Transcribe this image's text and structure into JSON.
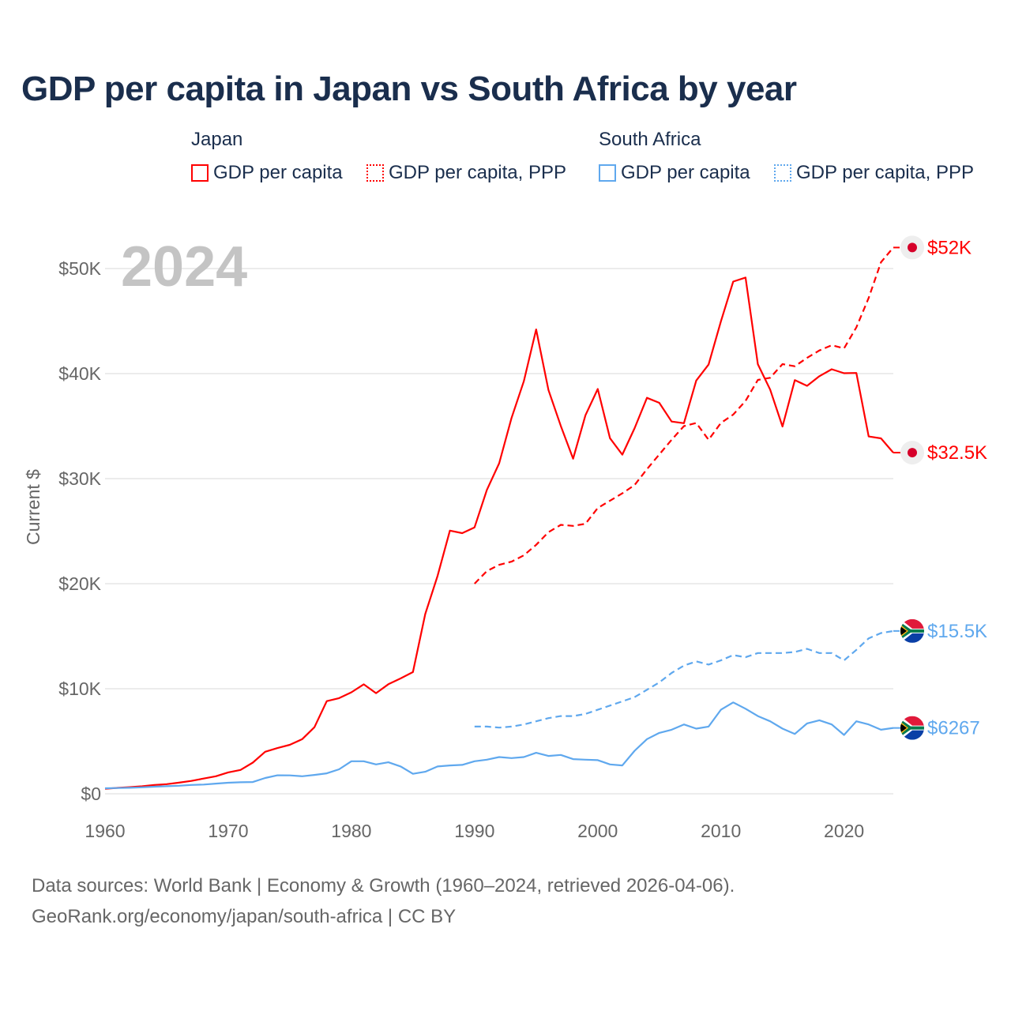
{
  "title": "GDP per capita in Japan vs South Africa by year",
  "legend": {
    "groups": [
      {
        "name": "Japan",
        "items": [
          "GDP per capita",
          "GDP per capita, PPP"
        ]
      },
      {
        "name": "South Africa",
        "items": [
          "GDP per capita",
          "GDP per capita, PPP"
        ]
      }
    ]
  },
  "year_label": "2024",
  "source_line1": "Data sources: World Bank | Economy & Growth (1960–2024, retrieved 2026-04-06).",
  "source_line2": "GeoRank.org/economy/japan/south-africa | CC BY",
  "colors": {
    "japan": "#ff0000",
    "south_africa": "#5fa8ee",
    "grid": "#e6e6e6"
  },
  "chart_data": {
    "type": "line",
    "title": "GDP per capita in Japan vs South Africa by year",
    "xlabel": "",
    "ylabel": "Current $",
    "xlim": [
      1960,
      2024
    ],
    "ylim": [
      0,
      50000
    ],
    "x_ticks": [
      1960,
      1970,
      1980,
      1990,
      2000,
      2010,
      2020
    ],
    "x_tick_labels": [
      "1960",
      "1970",
      "1980",
      "1990",
      "2000",
      "2010",
      "2020"
    ],
    "y_ticks": [
      0,
      10000,
      20000,
      30000,
      40000,
      50000
    ],
    "y_tick_labels": [
      "$0",
      "$10K",
      "$20K",
      "$30K",
      "$40K",
      "$50K"
    ],
    "grid": true,
    "legend_position": "top",
    "series": [
      {
        "name": "Japan GDP per capita",
        "country": "japan",
        "style": "solid",
        "start": 1960,
        "end_label": "$32.5K",
        "values": [
          476,
          564,
          634,
          718,
          835,
          919,
          1059,
          1229,
          1451,
          1669,
          2038,
          2272,
          2967,
          3997,
          4354,
          4659,
          5198,
          6335,
          8821,
          9105,
          9659,
          10421,
          9578,
          10425,
          10984,
          11585,
          17112,
          20746,
          25052,
          24813,
          25359,
          28925,
          31465,
          35766,
          39269,
          44200,
          38437,
          35022,
          31903,
          36027,
          38532,
          33846,
          32289,
          34809,
          37689,
          37218,
          35434,
          35275,
          39339,
          40855,
          44968,
          48760,
          49145,
          40898,
          38475,
          34961,
          39375,
          38834,
          39751,
          40416,
          40040,
          40059,
          34017,
          33834,
          32476
        ]
      },
      {
        "name": "Japan GDP per capita, PPP",
        "country": "japan",
        "style": "dashed",
        "start": 1990,
        "end_label": "$52K",
        "values": [
          20000,
          21200,
          21800,
          22100,
          22700,
          23700,
          24900,
          25600,
          25500,
          25700,
          27200,
          27900,
          28600,
          29400,
          30900,
          32300,
          33700,
          35000,
          35300,
          33700,
          35300,
          36100,
          37400,
          39400,
          39600,
          40900,
          40700,
          41500,
          42200,
          42700,
          42400,
          44400,
          47200,
          50600,
          52000
        ]
      },
      {
        "name": "South Africa GDP per capita",
        "country": "south_africa",
        "style": "solid",
        "start": 1960,
        "end_label": "$6267",
        "values": [
          530,
          550,
          570,
          620,
          680,
          720,
          770,
          840,
          880,
          970,
          1050,
          1100,
          1120,
          1500,
          1760,
          1750,
          1670,
          1800,
          1950,
          2330,
          3100,
          3100,
          2800,
          3000,
          2600,
          1900,
          2100,
          2600,
          2700,
          2750,
          3100,
          3250,
          3500,
          3400,
          3500,
          3900,
          3600,
          3700,
          3300,
          3250,
          3200,
          2800,
          2700,
          4100,
          5200,
          5800,
          6100,
          6600,
          6200,
          6400,
          8000,
          8700,
          8100,
          7400,
          6900,
          6200,
          5700,
          6700,
          7000,
          6600,
          5600,
          6900,
          6600,
          6100,
          6267
        ]
      },
      {
        "name": "South Africa GDP per capita, PPP",
        "country": "south_africa",
        "style": "dashed",
        "start": 1990,
        "end_label": "$15.5K",
        "values": [
          6400,
          6400,
          6300,
          6400,
          6600,
          6900,
          7200,
          7400,
          7400,
          7600,
          8000,
          8400,
          8800,
          9200,
          9900,
          10600,
          11500,
          12200,
          12600,
          12300,
          12700,
          13200,
          13000,
          13400,
          13400,
          13400,
          13500,
          13800,
          13400,
          13400,
          12700,
          13700,
          14800,
          15300,
          15500
        ]
      }
    ]
  }
}
